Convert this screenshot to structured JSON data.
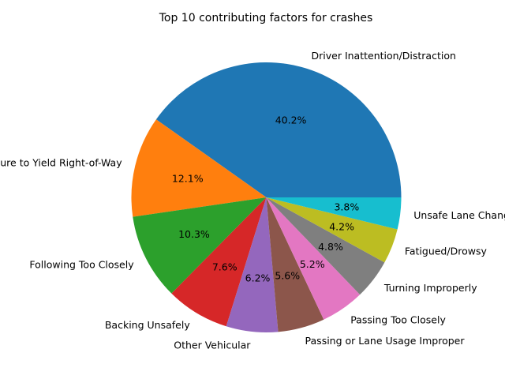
{
  "chart_data": {
    "type": "pie",
    "title": "Top 10 contributing factors for crashes",
    "start_angle_deg": 0,
    "direction": "counterclockwise",
    "slices": [
      {
        "label": "Driver Inattention/Distraction",
        "value": 40.2,
        "pct_label": "40.2%",
        "color": "#1f77b4"
      },
      {
        "label": "Failure to Yield Right-of-Way",
        "value": 12.1,
        "pct_label": "12.1%",
        "color": "#ff7f0e"
      },
      {
        "label": "Following Too Closely",
        "value": 10.3,
        "pct_label": "10.3%",
        "color": "#2ca02c"
      },
      {
        "label": "Backing Unsafely",
        "value": 7.6,
        "pct_label": "7.6%",
        "color": "#d62728"
      },
      {
        "label": "Other Vehicular",
        "value": 6.2,
        "pct_label": "6.2%",
        "color": "#9467bd"
      },
      {
        "label": "Passing or Lane Usage Improper",
        "value": 5.6,
        "pct_label": "5.6%",
        "color": "#8c564b"
      },
      {
        "label": "Passing Too Closely",
        "value": 5.2,
        "pct_label": "5.2%",
        "color": "#e377c2"
      },
      {
        "label": "Turning Improperly",
        "value": 4.8,
        "pct_label": "4.8%",
        "color": "#7f7f7f"
      },
      {
        "label": "Fatigued/Drowsy",
        "value": 4.2,
        "pct_label": "4.2%",
        "color": "#bcbd22"
      },
      {
        "label": "Unsafe Lane Changing",
        "value": 3.8,
        "pct_label": "3.8%",
        "color": "#17becf"
      }
    ]
  }
}
